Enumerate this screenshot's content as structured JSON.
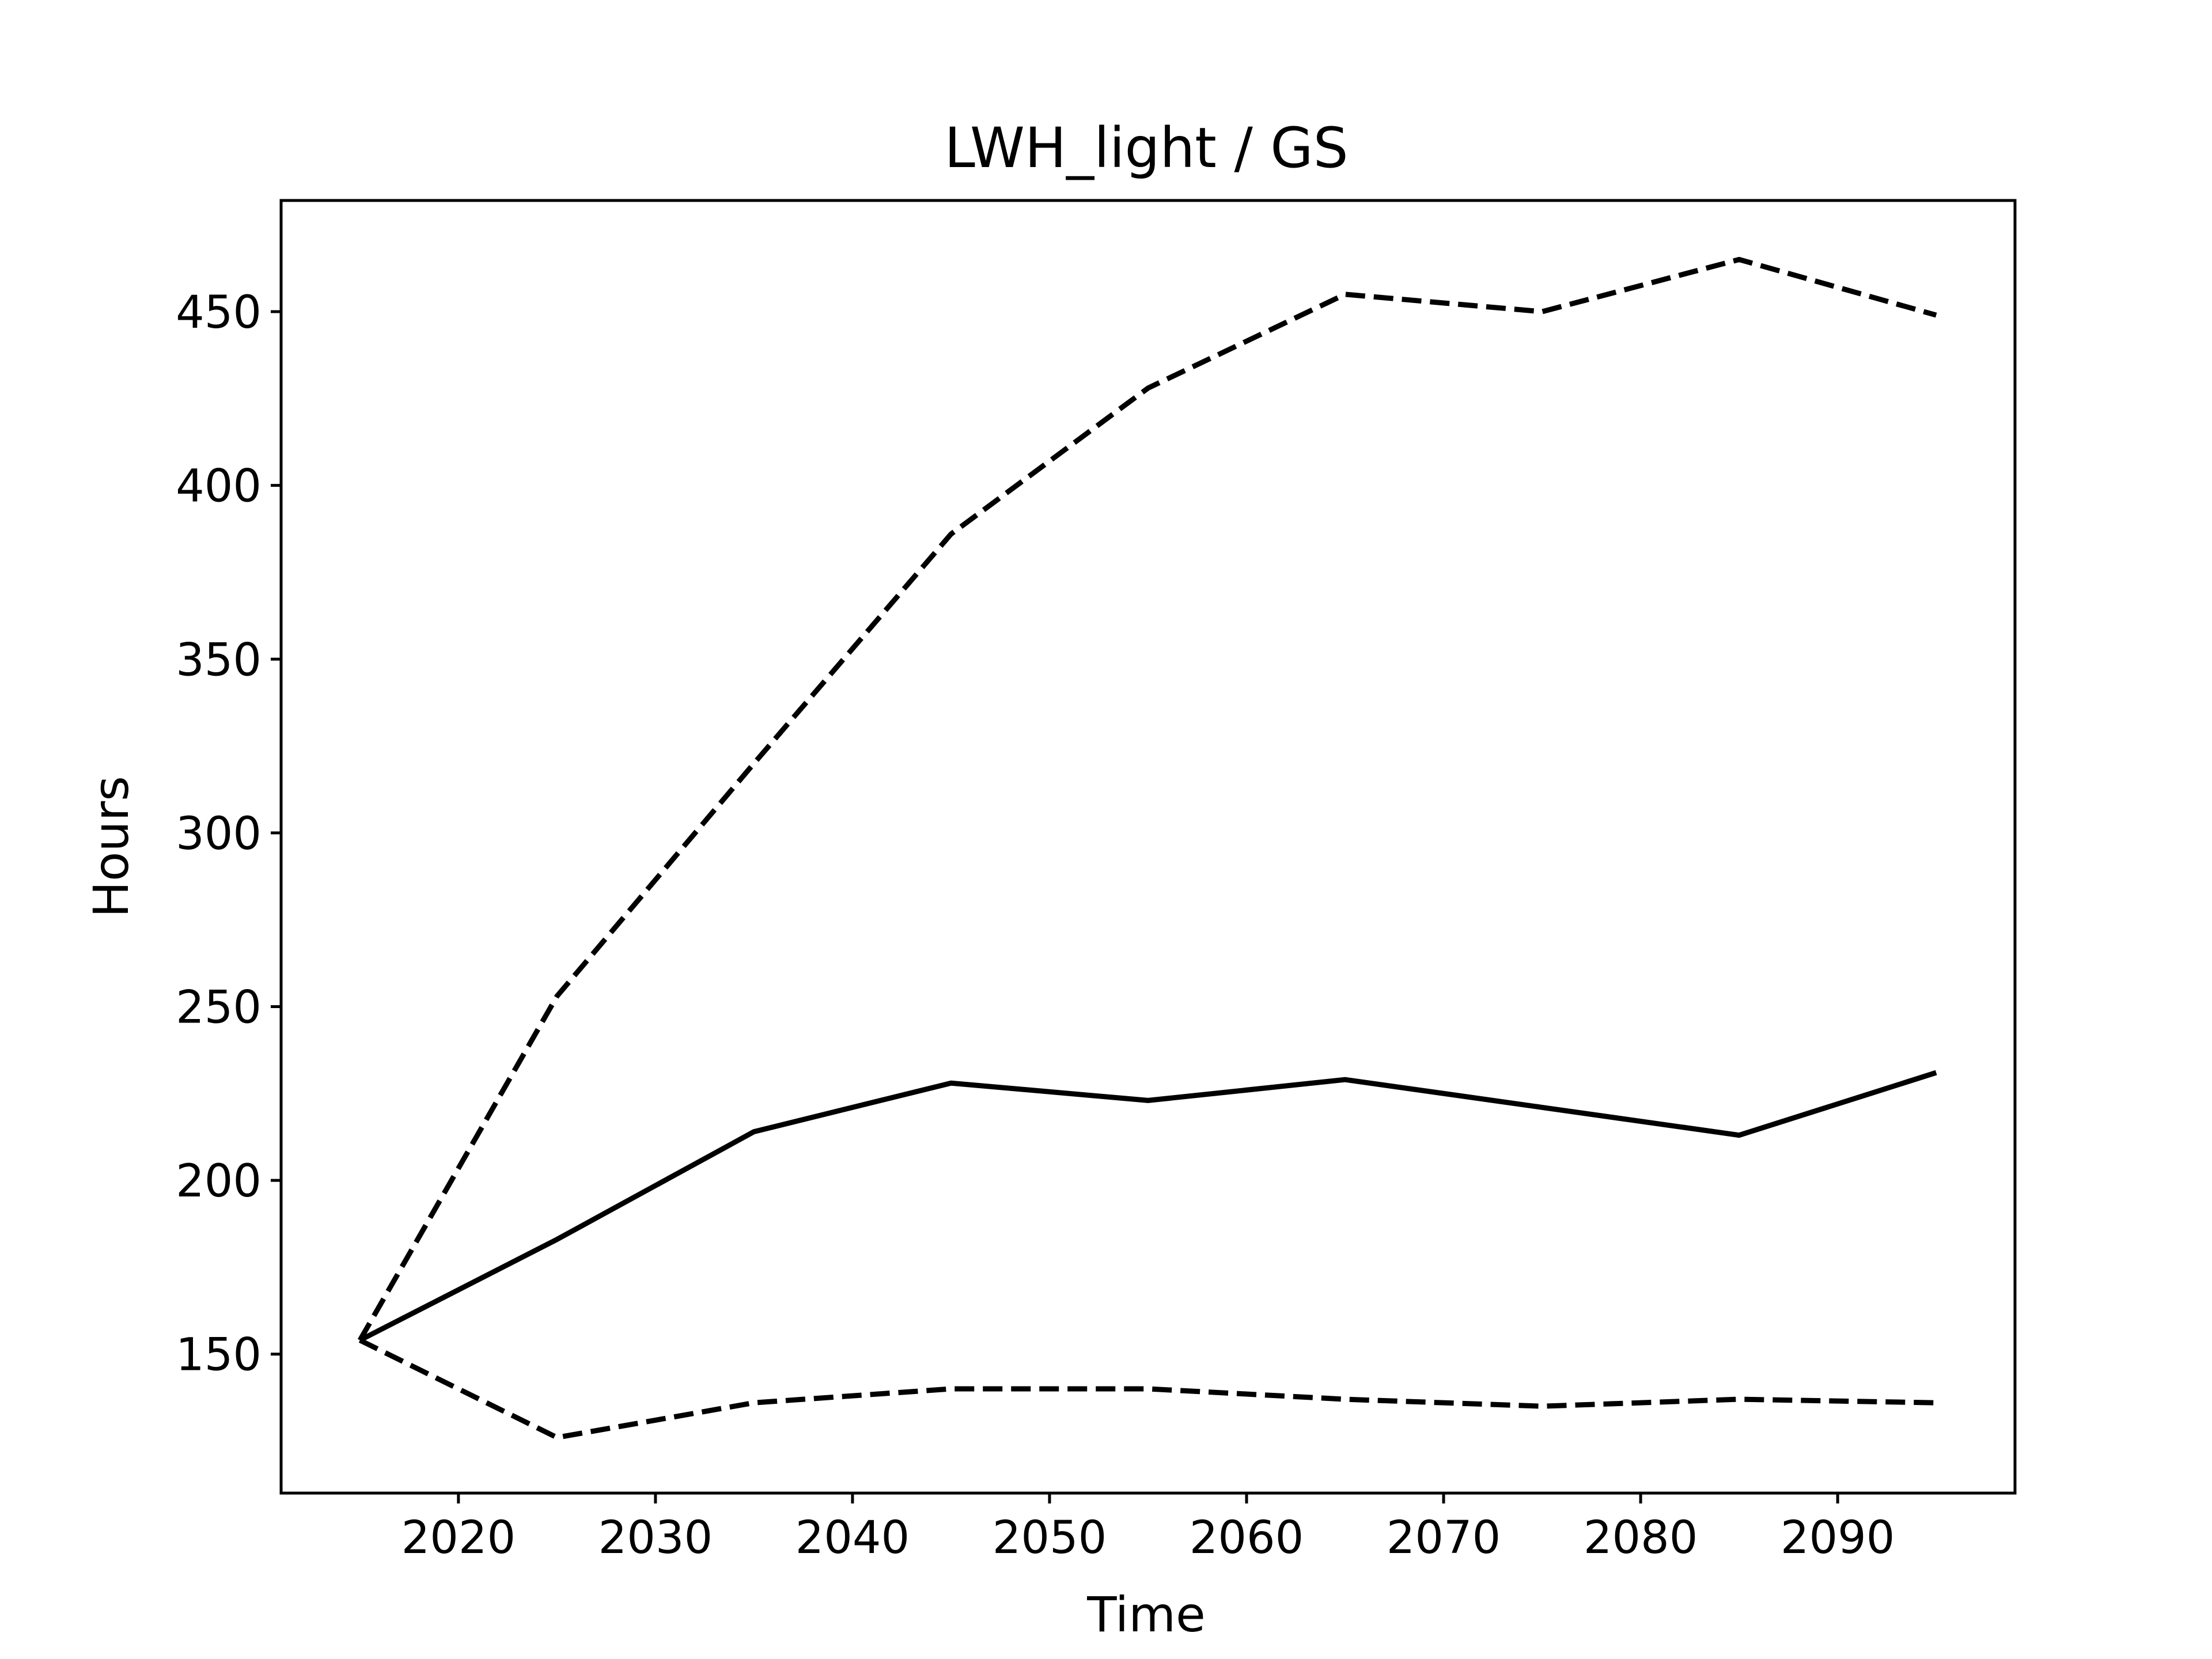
{
  "chart_data": {
    "type": "line",
    "title": "LWH_light / GS",
    "xlabel": "Time",
    "ylabel": "Hours",
    "xlim": [
      2011,
      2099
    ],
    "ylim": [
      110,
      482
    ],
    "grid": false,
    "x_ticks": [
      2020,
      2030,
      2040,
      2050,
      2060,
      2070,
      2080,
      2090
    ],
    "y_ticks": [
      150,
      200,
      250,
      300,
      350,
      400,
      450
    ],
    "x": [
      2015,
      2025,
      2035,
      2045,
      2055,
      2065,
      2075,
      2085,
      2095
    ],
    "series": [
      {
        "style": "solid",
        "color": "#000000",
        "values": [
          154,
          183,
          214,
          228,
          223,
          229,
          221,
          213,
          231
        ]
      },
      {
        "style": "dashed",
        "color": "#000000",
        "values": [
          154,
          253,
          320,
          386,
          428,
          455,
          450,
          465,
          449
        ]
      },
      {
        "style": "dashed",
        "color": "#000000",
        "values": [
          154,
          126,
          136,
          140,
          140,
          137,
          135,
          137,
          136
        ]
      }
    ]
  }
}
